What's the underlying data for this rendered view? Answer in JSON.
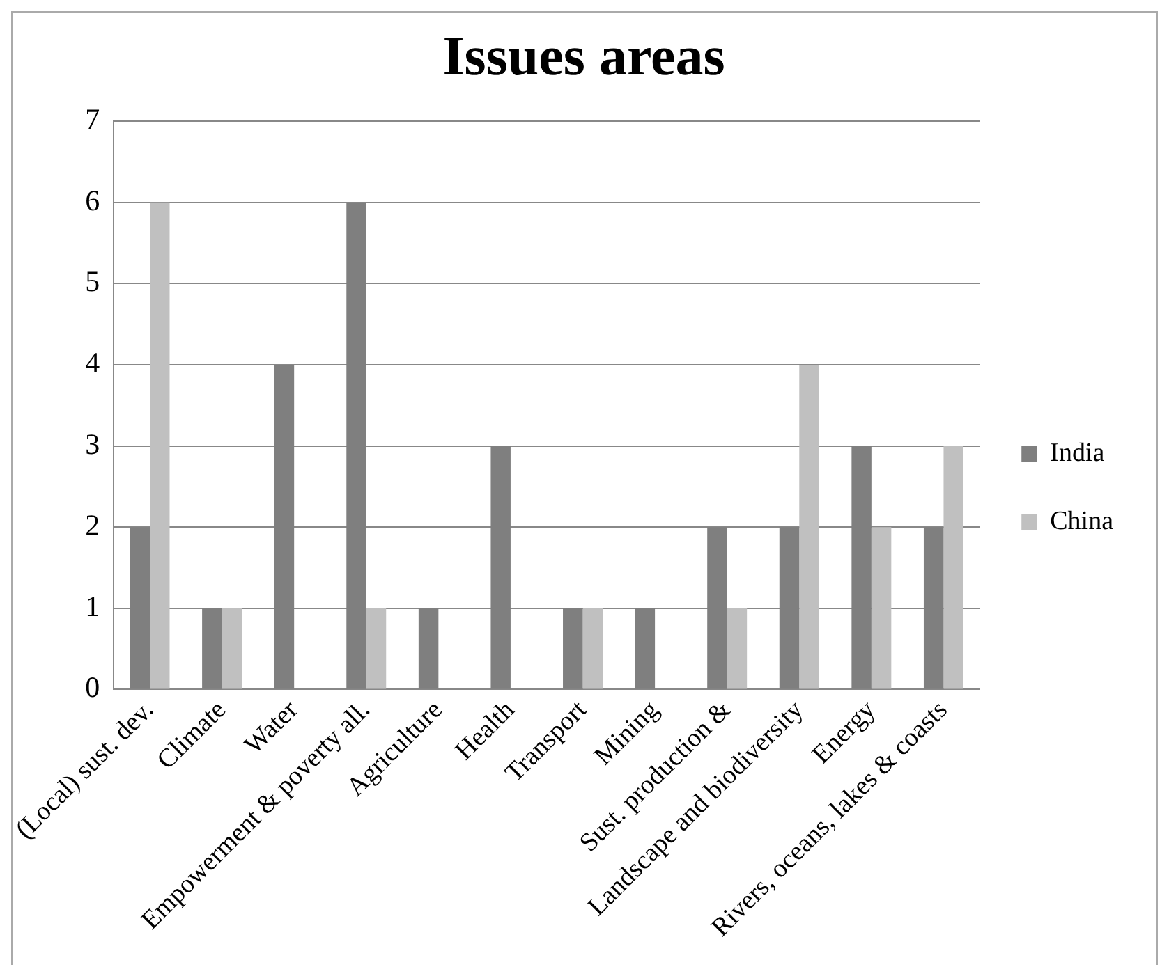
{
  "chart_data": {
    "type": "bar",
    "title": "Issues areas",
    "categories": [
      "(Local) sust. dev.",
      "Climate",
      "Water",
      "Empowerment & poverty all.",
      "Agriculture",
      "Health",
      "Transport",
      "Mining",
      "Sust. production &",
      "Landscape and biodiversity",
      "Energy",
      "Rivers, oceans, lakes & coasts"
    ],
    "series": [
      {
        "name": "India",
        "color": "#7f7f7f",
        "values": [
          2,
          1,
          4,
          6,
          1,
          3,
          1,
          1,
          2,
          2,
          3,
          2
        ]
      },
      {
        "name": "China",
        "color": "#c0c0c0",
        "values": [
          6,
          1,
          0,
          1,
          0,
          0,
          1,
          0,
          1,
          4,
          2,
          3
        ]
      }
    ],
    "ylim": [
      0,
      7
    ],
    "yticks": [
      0,
      1,
      2,
      3,
      4,
      5,
      6,
      7
    ],
    "grid": "y",
    "legend": "right"
  }
}
